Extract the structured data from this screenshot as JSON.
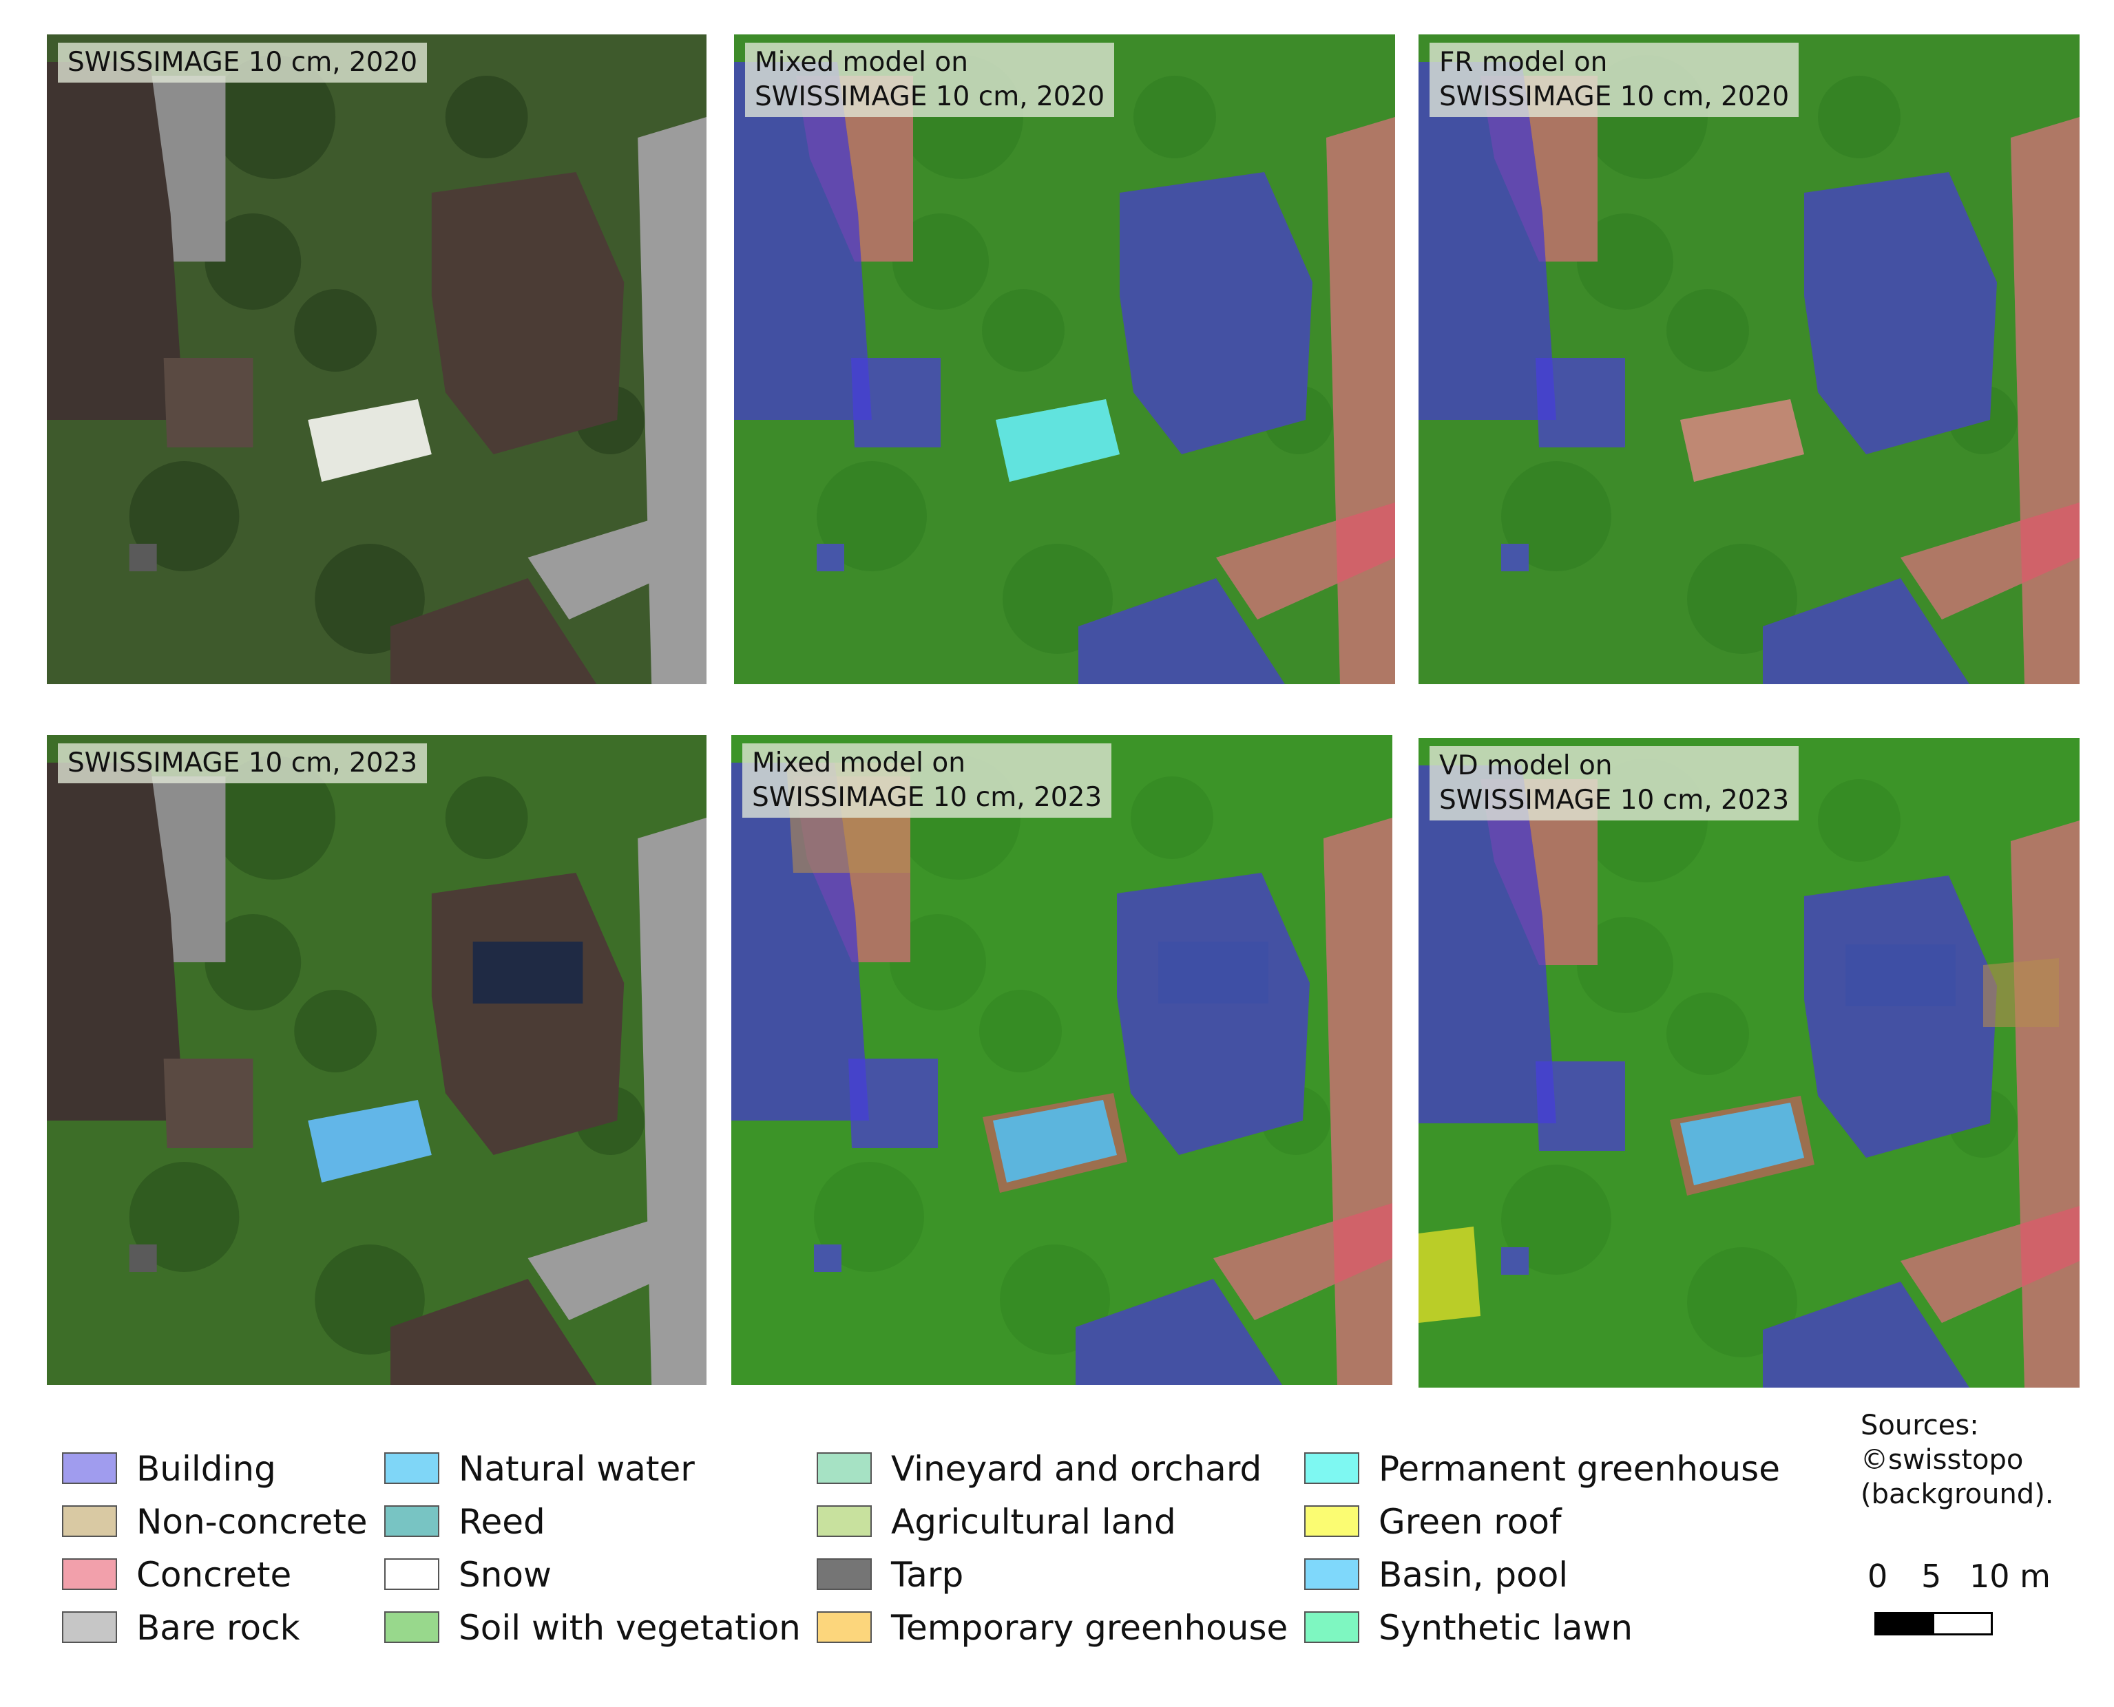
{
  "panels": [
    {
      "id": "p1",
      "label": "SWISSIMAGE 10 cm, 2020",
      "kind": "photo",
      "year": "2020"
    },
    {
      "id": "p2",
      "label": "Mixed model on\nSWISSIMAGE 10 cm, 2020",
      "kind": "mixed",
      "year": "2020"
    },
    {
      "id": "p3",
      "label": "FR model on\nSWISSIMAGE 10 cm, 2020",
      "kind": "fr",
      "year": "2020"
    },
    {
      "id": "p4",
      "label": "SWISSIMAGE 10 cm, 2023",
      "kind": "photo",
      "year": "2023"
    },
    {
      "id": "p5",
      "label": "Mixed model on\nSWISSIMAGE 10 cm, 2023",
      "kind": "mixed",
      "year": "2023"
    },
    {
      "id": "p6",
      "label": "VD model on\nSWISSIMAGE 10 cm, 2023",
      "kind": "vd",
      "year": "2023"
    }
  ],
  "legend": {
    "columns": [
      [
        {
          "label": "Building",
          "color": "#a09cee"
        },
        {
          "label": "Non-concrete",
          "color": "#d9c9a3"
        },
        {
          "label": "Concrete",
          "color": "#f2a0ab"
        },
        {
          "label": "Bare rock",
          "color": "#c6c6c6"
        }
      ],
      [
        {
          "label": "Natural water",
          "color": "#7fd6f7"
        },
        {
          "label": "Reed",
          "color": "#78c4c3"
        },
        {
          "label": "Snow",
          "color": "#ffffff"
        },
        {
          "label": "Soil with vegetation",
          "color": "#98d88c"
        }
      ],
      [
        {
          "label": "Vineyard and orchard",
          "color": "#a6e2c4"
        },
        {
          "label": "Agricultural land",
          "color": "#c8e19e"
        },
        {
          "label": "Tarp",
          "color": "#757575"
        },
        {
          "label": "Temporary greenhouse",
          "color": "#fcd67c"
        }
      ],
      [
        {
          "label": "Permanent greenhouse",
          "color": "#7ef8f2"
        },
        {
          "label": "Green roof",
          "color": "#fbfc72"
        },
        {
          "label": "Basin, pool",
          "color": "#7fd8fb"
        },
        {
          "label": "Synthetic lawn",
          "color": "#7ef7c1"
        }
      ]
    ]
  },
  "sources": "Sources:\n©swisstopo\n(background).",
  "scalebar": {
    "labels": [
      "0",
      "5",
      "10 m"
    ]
  }
}
